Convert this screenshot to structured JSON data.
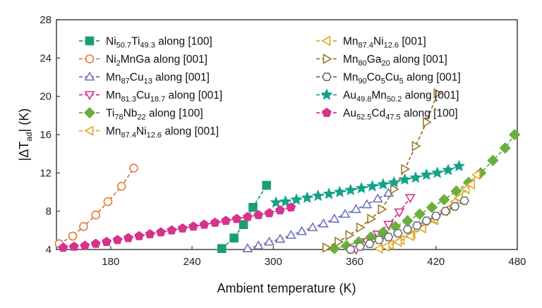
{
  "chart_data": {
    "type": "line",
    "title": "",
    "xlabel": "Ambient temperature (K)",
    "ylabel": "|ΔT_ad| (K)",
    "xlim": [
      140,
      480
    ],
    "ylim": [
      4,
      28
    ],
    "xticks": [
      180,
      240,
      300,
      360,
      420,
      480
    ],
    "yticks": [
      4,
      8,
      12,
      16,
      20,
      24,
      28
    ],
    "legend": "top-left",
    "series": [
      {
        "name": "Ni50.7Ti49.3 along [100]",
        "label_parts": [
          [
            "Ni",
            ""
          ],
          [
            "50.7",
            "sub"
          ],
          [
            "Ti",
            ""
          ],
          [
            "49.3",
            "sub"
          ],
          [
            " along [100]",
            ""
          ]
        ],
        "color": "#1a9e77",
        "marker": "square",
        "fill": true,
        "x": [
          262,
          271,
          278,
          285,
          295
        ],
        "y": [
          4.1,
          5.2,
          6.6,
          8.4,
          10.7
        ]
      },
      {
        "name": "Ni2MnGa along [001]",
        "label_parts": [
          [
            "Ni",
            ""
          ],
          [
            "2",
            "sub"
          ],
          [
            "MnGa along [001]",
            ""
          ]
        ],
        "color": "#e07b39",
        "marker": "circle",
        "fill": false,
        "x": [
          142,
          152,
          160,
          169,
          178,
          188,
          197
        ],
        "y": [
          4.6,
          5.4,
          6.4,
          7.6,
          9.0,
          10.6,
          12.5
        ]
      },
      {
        "name": "Mn87Cu13 along [001]",
        "label_parts": [
          [
            "Mn",
            ""
          ],
          [
            "87",
            "sub"
          ],
          [
            "Cu",
            ""
          ],
          [
            "13",
            "sub"
          ],
          [
            " along [001]",
            ""
          ]
        ],
        "color": "#6f72b8",
        "marker": "triangle-up",
        "fill": false,
        "x": [
          281,
          289,
          297,
          305,
          313,
          321,
          329,
          337,
          345,
          353,
          361,
          369,
          377,
          385
        ],
        "y": [
          4.1,
          4.4,
          4.8,
          5.1,
          5.5,
          5.9,
          6.3,
          6.7,
          7.2,
          7.7,
          8.2,
          8.7,
          9.3,
          9.9
        ]
      },
      {
        "name": "Mn81.3Cu18.7 along [001]",
        "label_parts": [
          [
            "Mn",
            ""
          ],
          [
            "81.3",
            "sub"
          ],
          [
            "Cu",
            ""
          ],
          [
            "18.7",
            "sub"
          ],
          [
            " along [001]",
            ""
          ]
        ],
        "color": "#d62f8f",
        "marker": "triangle-down",
        "fill": false,
        "x": [
          361,
          369,
          377,
          385,
          393,
          401
        ],
        "y": [
          4.0,
          4.8,
          5.6,
          6.6,
          7.9,
          9.4
        ]
      },
      {
        "name": "Ti78Nb22 along [100]",
        "label_parts": [
          [
            "Ti",
            ""
          ],
          [
            "78",
            "sub"
          ],
          [
            "Nb",
            ""
          ],
          [
            "22",
            "sub"
          ],
          [
            " along [100]",
            ""
          ]
        ],
        "color": "#6aaf3d",
        "marker": "diamond",
        "fill": true,
        "x": [
          345,
          354,
          363,
          372,
          381,
          390,
          399,
          408,
          417,
          426,
          435,
          444,
          453,
          462,
          471,
          478
        ],
        "y": [
          4.1,
          4.4,
          4.8,
          5.3,
          5.8,
          6.4,
          7.0,
          7.7,
          8.4,
          9.2,
          10.1,
          11.0,
          12.0,
          13.3,
          14.6,
          16.0
        ]
      },
      {
        "name": "Mn87.4Ni12.6 along [001]",
        "label_parts": [
          [
            "Mn",
            ""
          ],
          [
            "87.4",
            "sub"
          ],
          [
            "Ni",
            ""
          ],
          [
            "12.6",
            "sub"
          ],
          [
            " along [001]",
            ""
          ]
        ],
        "color": "#e0a82a",
        "marker": "triangle-left",
        "fill": false,
        "x": [
          378,
          386,
          394,
          402,
          410,
          418,
          426,
          434,
          442,
          450
        ],
        "y": [
          4.1,
          4.5,
          5.0,
          5.6,
          6.3,
          7.1,
          8.0,
          9.0,
          10.3,
          11.8
        ]
      },
      {
        "name": "Mn87.4Ni12.6 [001]",
        "label_parts": [
          [
            "Mn",
            ""
          ],
          [
            "87.4",
            "sub"
          ],
          [
            "Ni",
            ""
          ],
          [
            "12.6",
            "sub"
          ],
          [
            " [001]",
            ""
          ]
        ],
        "color": "#e0a82a",
        "marker": "triangle-left",
        "fill": false,
        "x": [
          383,
          392,
          401,
          410,
          419,
          428,
          437,
          446
        ],
        "y": [
          4.3,
          4.8,
          5.4,
          6.2,
          7.1,
          8.2,
          9.4,
          10.8
        ]
      },
      {
        "name": "Mn80Ga20 along [001]",
        "label_parts": [
          [
            "Mn",
            ""
          ],
          [
            "80",
            "sub"
          ],
          [
            "Ga",
            ""
          ],
          [
            "20",
            "sub"
          ],
          [
            " along [001]",
            ""
          ]
        ],
        "color": "#9e7b2c",
        "marker": "triangle-right",
        "fill": false,
        "x": [
          339,
          348,
          356,
          364,
          372,
          380,
          389,
          397,
          405,
          413,
          421
        ],
        "y": [
          4.2,
          4.8,
          5.5,
          6.3,
          7.2,
          8.2,
          10.3,
          12.4,
          14.8,
          17.3,
          20.3
        ]
      },
      {
        "name": "Mn90Co5Cu5 along [001]",
        "label_parts": [
          [
            "Mn",
            ""
          ],
          [
            "90",
            "sub"
          ],
          [
            "Co",
            ""
          ],
          [
            "5",
            "sub"
          ],
          [
            "Cu",
            ""
          ],
          [
            "5",
            "sub"
          ],
          [
            " along [001]",
            ""
          ]
        ],
        "color": "#6e6e6e",
        "marker": "hexagon",
        "fill": false,
        "x": [
          357,
          364,
          371,
          378,
          385,
          392,
          399,
          406,
          413,
          420,
          427,
          434,
          441
        ],
        "y": [
          4.0,
          4.3,
          4.6,
          5.0,
          5.3,
          5.7,
          6.1,
          6.5,
          7.0,
          7.5,
          8.0,
          8.5,
          9.1
        ]
      },
      {
        "name": "Au49.8Mn50.2 along [001]",
        "label_parts": [
          [
            "Au",
            ""
          ],
          [
            "49.8",
            "sub"
          ],
          [
            "Mn",
            ""
          ],
          [
            "50.2",
            "sub"
          ],
          [
            " along [001]",
            ""
          ]
        ],
        "color": "#14a38a",
        "marker": "star",
        "fill": true,
        "x": [
          302,
          309,
          317,
          325,
          333,
          341,
          349,
          357,
          365,
          373,
          381,
          389,
          397,
          405,
          413,
          421,
          429,
          437
        ],
        "y": [
          8.9,
          9.0,
          9.2,
          9.4,
          9.6,
          9.8,
          10.0,
          10.2,
          10.4,
          10.6,
          10.8,
          11.0,
          11.3,
          11.5,
          11.8,
          12.0,
          12.3,
          12.7
        ]
      },
      {
        "name": "Au52.5Cd47.5 along [100]",
        "label_parts": [
          [
            "Au",
            ""
          ],
          [
            "52.5",
            "sub"
          ],
          [
            "Cd",
            ""
          ],
          [
            "47.5",
            "sub"
          ],
          [
            " along [100]",
            ""
          ]
        ],
        "color": "#d6338c",
        "marker": "pentagon",
        "fill": true,
        "x": [
          145,
          153,
          161,
          169,
          177,
          185,
          193,
          201,
          209,
          217,
          225,
          233,
          241,
          249,
          257,
          265,
          273,
          281,
          289,
          297,
          305,
          313
        ],
        "y": [
          4.2,
          4.3,
          4.4,
          4.6,
          4.8,
          5.0,
          5.2,
          5.4,
          5.6,
          5.8,
          6.0,
          6.2,
          6.4,
          6.6,
          6.8,
          7.0,
          7.2,
          7.4,
          7.6,
          7.8,
          8.1,
          8.4
        ]
      }
    ],
    "legend_columns": [
      [
        "Ni50.7Ti49.3 along [100]",
        "Ni2MnGa along [001]",
        "Mn87Cu13 along [001]",
        "Mn81.3Cu18.7 along [001]",
        "Ti78Nb22 along [100]",
        "Mn87.4Ni12.6 along [001]"
      ],
      [
        "Mn87.4Ni12.6 [001]",
        "Mn80Ga20 along [001]",
        "Mn90Co5Cu5 along [001]",
        "Au49.8Mn50.2 along [001]",
        "Au52.5Cd47.5 along [100]"
      ]
    ]
  }
}
